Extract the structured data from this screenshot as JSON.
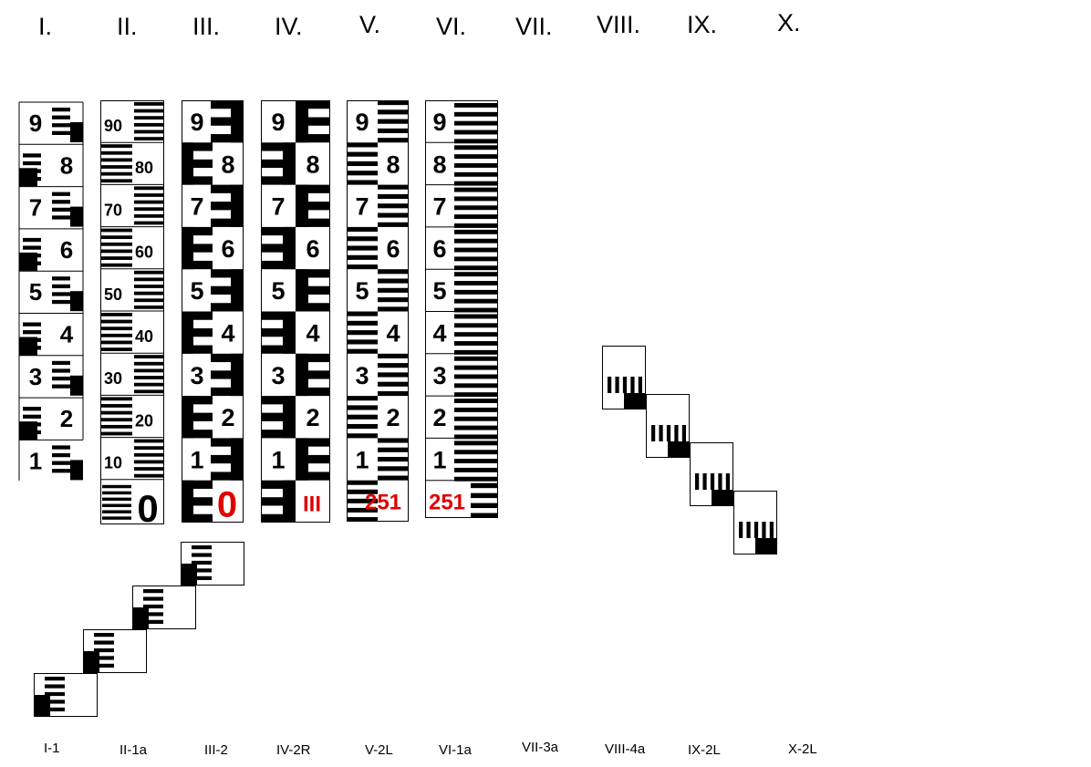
{
  "headers": [
    "I.",
    "II.",
    "III.",
    "IV.",
    "V.",
    "VI.",
    "VII.",
    "VIII.",
    "IX.",
    "X."
  ],
  "codes": [
    "I-1",
    "II-1a",
    "III-2",
    "IV-2R",
    "V-2L",
    "VI-1a",
    "VII-3a",
    "VIII-4a",
    "IX-2L",
    "X-2L"
  ],
  "staff_I": {
    "digits": [
      "9",
      "8",
      "7",
      "6",
      "5",
      "4",
      "3",
      "2",
      "1"
    ]
  },
  "staff_II": {
    "labels": [
      "90",
      "80",
      "70",
      "60",
      "50",
      "40",
      "30",
      "20",
      "10"
    ],
    "base": "0"
  },
  "staff_III": {
    "digits": [
      "9",
      "8",
      "7",
      "6",
      "5",
      "4",
      "3",
      "2",
      "1"
    ],
    "base": "0"
  },
  "staff_IV": {
    "digits": [
      "9",
      "8",
      "7",
      "6",
      "5",
      "4",
      "3",
      "2",
      "1"
    ],
    "base": "III"
  },
  "staff_V": {
    "digits": [
      "9",
      "8",
      "7",
      "6",
      "5",
      "4",
      "3",
      "2",
      "1"
    ],
    "base": "251"
  },
  "staff_VI": {
    "digits": [
      "9",
      "8",
      "7",
      "6",
      "5",
      "4",
      "3",
      "2",
      "1"
    ],
    "base": "251"
  },
  "colors": {
    "ink": "#000000",
    "accent": "#e00000",
    "paper": "#ffffff"
  }
}
